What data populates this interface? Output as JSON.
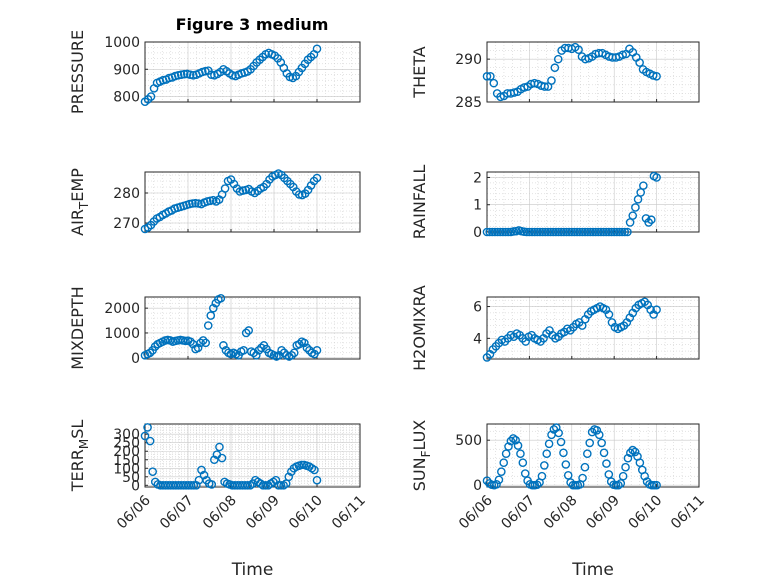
{
  "title": "Figure 3 medium",
  "colors": {
    "marker": "#0072BD",
    "axis": "#262626"
  },
  "chart_data": [
    {
      "type": "scatter",
      "ylabel": "PRESSURE",
      "ylim": [
        780,
        1000
      ],
      "yticks": [
        800,
        900,
        1000
      ],
      "grid": true,
      "xticklabels": [],
      "series": [
        {
          "values": [
            781,
            790,
            800,
            830,
            850,
            855,
            860,
            862,
            868,
            870,
            875,
            878,
            880,
            882,
            883,
            880,
            878,
            880,
            885,
            890,
            893,
            895,
            880,
            878,
            883,
            890,
            900,
            893,
            885,
            878,
            875,
            880,
            885,
            888,
            892,
            900,
            912,
            925,
            935,
            945,
            955,
            960,
            955,
            950,
            940,
            925,
            905,
            885,
            872,
            868,
            875,
            890,
            905,
            920,
            935,
            945,
            955,
            975
          ]
        }
      ]
    },
    {
      "type": "scatter",
      "ylabel": "THETA",
      "ylim": [
        285,
        292
      ],
      "yticks": [
        285,
        290
      ],
      "grid": true,
      "xticklabels": [],
      "series": [
        {
          "values": [
            288,
            288,
            287.2,
            286,
            285.6,
            285.7,
            286,
            286,
            286.1,
            286.2,
            286.5,
            286.7,
            286.8,
            287.1,
            287.2,
            287.1,
            286.9,
            286.8,
            286.8,
            287.5,
            289,
            290,
            291,
            291.3,
            291.3,
            291.2,
            291.4,
            291.1,
            290.3,
            290,
            290.1,
            290.3,
            290.6,
            290.7,
            290.7,
            290.5,
            290.3,
            290.2,
            290.2,
            290.3,
            290.5,
            290.6,
            291.2,
            290.8,
            290.2,
            289.6,
            288.8,
            288.5,
            288.3,
            288.1,
            288
          ]
        }
      ]
    },
    {
      "type": "scatter",
      "ylabel": "AIR_TEMP",
      "ylim": [
        267,
        287
      ],
      "yticks": [
        270,
        280
      ],
      "grid": true,
      "xticklabels": [],
      "series": [
        {
          "values": [
            268,
            268.5,
            269.3,
            270.5,
            271.5,
            272,
            272.7,
            273.2,
            273.8,
            274.2,
            274.8,
            275.1,
            275.4,
            275.7,
            276,
            276.3,
            276.5,
            276.6,
            276.5,
            276.3,
            276.8,
            277.2,
            277.4,
            277.6,
            277.2,
            277.8,
            279.5,
            281.5,
            284,
            284.5,
            283,
            281.5,
            280.5,
            280.8,
            281,
            281.3,
            280.5,
            280,
            280.7,
            281.5,
            282,
            283,
            284.5,
            285.5,
            286,
            286.5,
            286,
            285,
            284,
            283,
            282,
            280.5,
            279.5,
            279.3,
            279.8,
            281,
            282.5,
            284,
            285
          ]
        }
      ]
    },
    {
      "type": "scatter",
      "ylabel": "RAINFALL",
      "ylim": [
        0,
        2.2
      ],
      "yticks": [
        0,
        1,
        2
      ],
      "grid": true,
      "xticklabels": [],
      "series": [
        {
          "values": [
            0,
            0,
            0,
            0,
            0,
            0,
            0,
            0,
            0,
            0,
            0.02,
            0.03,
            0.06,
            0.03,
            0.01,
            0,
            0,
            0,
            0,
            0,
            0,
            0,
            0,
            0,
            0,
            0,
            0,
            0,
            0,
            0,
            0,
            0,
            0,
            0,
            0,
            0,
            0,
            0,
            0,
            0,
            0,
            0,
            0,
            0,
            0,
            0,
            0,
            0,
            0,
            0,
            0,
            0,
            0,
            0,
            0.35,
            0.6,
            0.9,
            1.2,
            1.45,
            1.7,
            0.5,
            0.35,
            0.45,
            2.05,
            2.0
          ]
        }
      ]
    },
    {
      "type": "scatter",
      "ylabel": "MIXDEPTH",
      "ylim": [
        -50,
        2450
      ],
      "yticks": [
        0,
        1000,
        2000
      ],
      "grid": true,
      "xticklabels": [],
      "series": [
        {
          "values": [
            100,
            150,
            200,
            300,
            450,
            550,
            600,
            650,
            700,
            720,
            700,
            650,
            680,
            700,
            720,
            700,
            680,
            690,
            650,
            550,
            350,
            400,
            600,
            700,
            600,
            1300,
            1700,
            2000,
            2200,
            2350,
            2400,
            500,
            300,
            200,
            150,
            200,
            150,
            100,
            250,
            300,
            1000,
            1100,
            250,
            200,
            100,
            300,
            400,
            500,
            350,
            200,
            150,
            100,
            50,
            100,
            300,
            200,
            100,
            50,
            100,
            200,
            500,
            550,
            650,
            600,
            400,
            300,
            200,
            150,
            300
          ]
        }
      ]
    },
    {
      "type": "scatter",
      "ylabel": "H2OMIXRA",
      "ylim": [
        2.7,
        6.6
      ],
      "yticks": [
        4,
        6
      ],
      "grid": true,
      "xticklabels": [],
      "series": [
        {
          "values": [
            2.8,
            3.0,
            3.3,
            3.5,
            3.7,
            3.9,
            3.8,
            4.0,
            4.2,
            4.1,
            4.3,
            4.2,
            4.0,
            3.8,
            4.1,
            4.2,
            4.0,
            3.9,
            3.8,
            4.0,
            4.3,
            4.5,
            4.2,
            4.0,
            4.1,
            4.3,
            4.4,
            4.6,
            4.5,
            4.7,
            4.9,
            5.0,
            4.8,
            5.2,
            5.5,
            5.7,
            5.8,
            5.9,
            6.0,
            5.9,
            5.8,
            5.5,
            5.0,
            4.7,
            4.6,
            4.7,
            4.8,
            5.0,
            5.3,
            5.6,
            5.9,
            6.1,
            6.2,
            6.3,
            6.1,
            5.8,
            5.5,
            5.8
          ]
        }
      ]
    },
    {
      "type": "scatter",
      "ylabel": "TERR_MSL",
      "ylim": [
        -10,
        360
      ],
      "yticks": [
        0,
        50,
        100,
        150,
        200,
        250,
        300
      ],
      "grid": true,
      "xticklabels": [
        "06/06",
        "06/07",
        "06/08",
        "06/09",
        "06/10",
        "06/11"
      ],
      "xlabel": "Time",
      "series": [
        {
          "values": [
            290,
            340,
            260,
            80,
            20,
            5,
            0,
            0,
            0,
            0,
            0,
            0,
            0,
            0,
            0,
            0,
            0,
            0,
            0,
            0,
            0,
            30,
            90,
            60,
            30,
            10,
            5,
            150,
            180,
            225,
            160,
            20,
            10,
            5,
            0,
            0,
            0,
            0,
            0,
            0,
            0,
            0,
            10,
            30,
            20,
            10,
            0,
            0,
            0,
            10,
            20,
            30,
            0,
            0,
            0,
            10,
            50,
            80,
            100,
            110,
            115,
            120,
            120,
            115,
            110,
            100,
            90,
            30
          ]
        }
      ]
    },
    {
      "type": "scatter",
      "ylabel": "SUN_FLUX",
      "ylim": [
        -20,
        680
      ],
      "yticks": [
        0,
        500
      ],
      "grid": true,
      "xticklabels": [
        "06/06",
        "06/07",
        "06/08",
        "06/09",
        "06/10",
        "06/11"
      ],
      "xlabel": "Time",
      "series": [
        {
          "values": [
            50,
            20,
            5,
            0,
            10,
            60,
            150,
            250,
            350,
            430,
            490,
            520,
            500,
            440,
            350,
            250,
            130,
            50,
            10,
            0,
            0,
            5,
            30,
            100,
            220,
            350,
            460,
            560,
            620,
            640,
            580,
            480,
            360,
            230,
            110,
            30,
            0,
            0,
            0,
            10,
            80,
            200,
            350,
            470,
            590,
            620,
            610,
            560,
            470,
            360,
            240,
            120,
            40,
            5,
            0,
            0,
            20,
            100,
            200,
            300,
            360,
            390,
            370,
            320,
            250,
            170,
            100,
            40,
            10,
            0,
            0,
            0
          ]
        }
      ]
    }
  ]
}
